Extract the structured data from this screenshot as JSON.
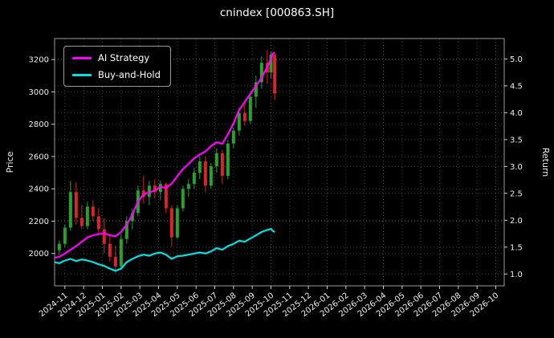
{
  "title": "cnindex [000863.SH]",
  "axes": {
    "left_label": "Price",
    "right_label": "Return"
  },
  "legend": {
    "items": [
      {
        "label": "AI Strategy",
        "color": "#ff00ff"
      },
      {
        "label": "Buy-and-Hold",
        "color": "#00e0e0"
      }
    ]
  },
  "chart_data": {
    "type": "candlestick+line",
    "title": "cnindex [000863.SH]",
    "xlabel": "",
    "left_ylabel": "Price",
    "right_ylabel": "Return",
    "grid": true,
    "legend_position": "upper-left",
    "x_tick_labels": [
      "2024-11",
      "2024-12",
      "2025-01",
      "2025-02",
      "2025-03",
      "2025-04",
      "2025-05",
      "2025-06",
      "2025-07",
      "2025-08",
      "2025-09",
      "2025-10",
      "2025-11",
      "2025-12",
      "2026-01",
      "2026-02",
      "2026-03",
      "2026-04",
      "2026-05",
      "2026-06",
      "2026-07",
      "2026-08",
      "2026-09",
      "2026-10"
    ],
    "x_domain": [
      -0.55,
      23.45
    ],
    "price_ticks": [
      2000,
      2200,
      2400,
      2600,
      2800,
      3000,
      3200
    ],
    "price_ylim": [
      1800,
      3330
    ],
    "return_ticks": [
      1.0,
      1.5,
      2.0,
      2.5,
      3.0,
      3.5,
      4.0,
      4.5,
      5.0
    ],
    "return_ylim": [
      0.78,
      5.38
    ],
    "series": [
      {
        "name": "AI Strategy",
        "axis": "return",
        "color": "#ff00ff",
        "width": 2.2,
        "points": [
          [
            -0.55,
            1.3
          ],
          [
            -0.3,
            1.32
          ],
          [
            0,
            1.38
          ],
          [
            0.3,
            1.45
          ],
          [
            0.6,
            1.52
          ],
          [
            0.9,
            1.6
          ],
          [
            1.2,
            1.68
          ],
          [
            1.5,
            1.72
          ],
          [
            1.8,
            1.74
          ],
          [
            2.1,
            1.76
          ],
          [
            2.4,
            1.72
          ],
          [
            2.7,
            1.7
          ],
          [
            3.0,
            1.78
          ],
          [
            3.3,
            1.92
          ],
          [
            3.6,
            2.1
          ],
          [
            3.9,
            2.35
          ],
          [
            4.2,
            2.48
          ],
          [
            4.5,
            2.52
          ],
          [
            4.8,
            2.55
          ],
          [
            5.1,
            2.62
          ],
          [
            5.4,
            2.6
          ],
          [
            5.7,
            2.68
          ],
          [
            6.0,
            2.82
          ],
          [
            6.3,
            2.95
          ],
          [
            6.6,
            3.05
          ],
          [
            6.9,
            3.15
          ],
          [
            7.2,
            3.22
          ],
          [
            7.5,
            3.28
          ],
          [
            7.8,
            3.38
          ],
          [
            8.1,
            3.45
          ],
          [
            8.4,
            3.42
          ],
          [
            8.7,
            3.6
          ],
          [
            9.0,
            3.8
          ],
          [
            9.3,
            4.05
          ],
          [
            9.6,
            4.2
          ],
          [
            9.9,
            4.35
          ],
          [
            10.2,
            4.5
          ],
          [
            10.5,
            4.65
          ],
          [
            10.8,
            4.85
          ],
          [
            11.0,
            5.0
          ],
          [
            11.1,
            5.1
          ],
          [
            11.2,
            5.12
          ]
        ]
      },
      {
        "name": "Buy-and-Hold",
        "axis": "return",
        "color": "#00e0e0",
        "width": 2.2,
        "points": [
          [
            -0.55,
            1.22
          ],
          [
            -0.3,
            1.2
          ],
          [
            0,
            1.25
          ],
          [
            0.3,
            1.28
          ],
          [
            0.6,
            1.24
          ],
          [
            0.9,
            1.27
          ],
          [
            1.2,
            1.25
          ],
          [
            1.5,
            1.22
          ],
          [
            1.8,
            1.18
          ],
          [
            2.1,
            1.15
          ],
          [
            2.4,
            1.1
          ],
          [
            2.7,
            1.06
          ],
          [
            3.0,
            1.1
          ],
          [
            3.3,
            1.22
          ],
          [
            3.6,
            1.28
          ],
          [
            3.9,
            1.33
          ],
          [
            4.2,
            1.36
          ],
          [
            4.5,
            1.34
          ],
          [
            4.8,
            1.38
          ],
          [
            5.1,
            1.4
          ],
          [
            5.4,
            1.36
          ],
          [
            5.7,
            1.28
          ],
          [
            6.0,
            1.33
          ],
          [
            6.3,
            1.34
          ],
          [
            6.6,
            1.36
          ],
          [
            6.9,
            1.38
          ],
          [
            7.2,
            1.4
          ],
          [
            7.5,
            1.38
          ],
          [
            7.8,
            1.42
          ],
          [
            8.1,
            1.48
          ],
          [
            8.4,
            1.45
          ],
          [
            8.7,
            1.52
          ],
          [
            9.0,
            1.56
          ],
          [
            9.3,
            1.62
          ],
          [
            9.6,
            1.6
          ],
          [
            9.9,
            1.66
          ],
          [
            10.2,
            1.72
          ],
          [
            10.5,
            1.78
          ],
          [
            10.8,
            1.82
          ],
          [
            11.0,
            1.84
          ],
          [
            11.1,
            1.8
          ],
          [
            11.2,
            1.78
          ]
        ]
      }
    ],
    "candles": {
      "axis": "price",
      "up_color": "#2ca02c",
      "down_color": "#d62728",
      "data": [
        [
          -0.3,
          2020,
          2080,
          1990,
          2060
        ],
        [
          0.0,
          2060,
          2180,
          2040,
          2160
        ],
        [
          0.3,
          2160,
          2450,
          2140,
          2380
        ],
        [
          0.6,
          2380,
          2440,
          2180,
          2220
        ],
        [
          0.9,
          2220,
          2300,
          2150,
          2170
        ],
        [
          1.2,
          2170,
          2320,
          2150,
          2290
        ],
        [
          1.5,
          2290,
          2330,
          2200,
          2230
        ],
        [
          1.8,
          2230,
          2280,
          2120,
          2150
        ],
        [
          2.1,
          2150,
          2220,
          2000,
          2060
        ],
        [
          2.4,
          2060,
          2120,
          1950,
          1980
        ],
        [
          2.7,
          1980,
          2050,
          1880,
          1920
        ],
        [
          3.0,
          1920,
          2120,
          1900,
          2090
        ],
        [
          3.3,
          2090,
          2230,
          2060,
          2200
        ],
        [
          3.6,
          2200,
          2280,
          2150,
          2250
        ],
        [
          3.9,
          2250,
          2420,
          2230,
          2390
        ],
        [
          4.2,
          2390,
          2480,
          2310,
          2350
        ],
        [
          4.5,
          2350,
          2450,
          2300,
          2420
        ],
        [
          4.8,
          2420,
          2460,
          2340,
          2380
        ],
        [
          5.1,
          2380,
          2450,
          2330,
          2430
        ],
        [
          5.4,
          2430,
          2440,
          2250,
          2280
        ],
        [
          5.7,
          2280,
          2300,
          2040,
          2100
        ],
        [
          6.0,
          2100,
          2300,
          2090,
          2280
        ],
        [
          6.3,
          2280,
          2420,
          2260,
          2400
        ],
        [
          6.6,
          2400,
          2460,
          2350,
          2430
        ],
        [
          6.9,
          2430,
          2530,
          2400,
          2500
        ],
        [
          7.2,
          2500,
          2600,
          2460,
          2570
        ],
        [
          7.5,
          2570,
          2600,
          2380,
          2420
        ],
        [
          7.8,
          2420,
          2560,
          2400,
          2540
        ],
        [
          8.1,
          2540,
          2650,
          2500,
          2620
        ],
        [
          8.4,
          2620,
          2640,
          2430,
          2480
        ],
        [
          8.7,
          2480,
          2700,
          2460,
          2680
        ],
        [
          9.0,
          2680,
          2780,
          2650,
          2760
        ],
        [
          9.3,
          2760,
          2900,
          2730,
          2870
        ],
        [
          9.6,
          2870,
          2950,
          2790,
          2820
        ],
        [
          9.9,
          2820,
          3000,
          2800,
          2970
        ],
        [
          10.2,
          2970,
          3100,
          2900,
          3060
        ],
        [
          10.5,
          3060,
          3220,
          3020,
          3180
        ],
        [
          10.8,
          3180,
          3260,
          3050,
          3120
        ],
        [
          11.0,
          3120,
          3250,
          3080,
          3230
        ],
        [
          11.2,
          3230,
          3240,
          2950,
          2990
        ]
      ]
    }
  }
}
